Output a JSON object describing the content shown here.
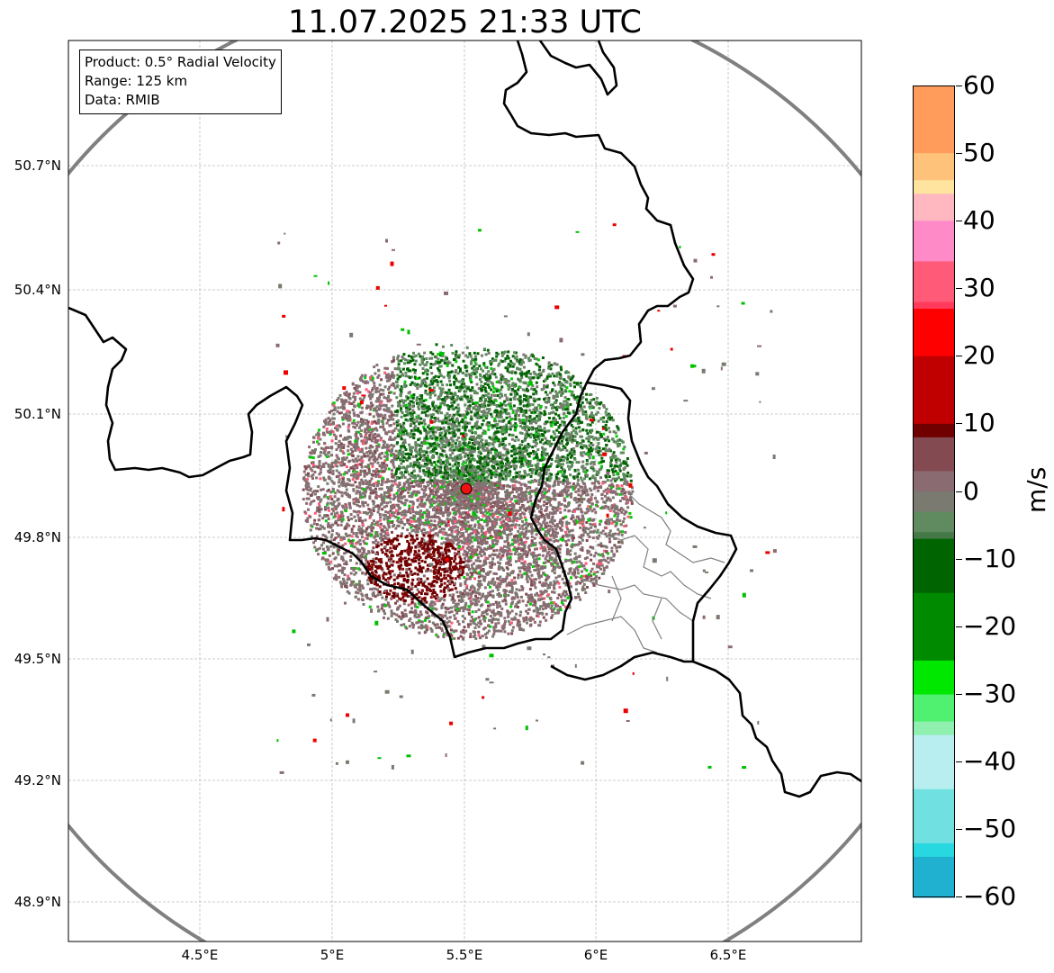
{
  "title": "11.07.2025 21:33 UTC",
  "info_box": {
    "product": "Product: 0.5° Radial Velocity",
    "range": "Range: 125 km",
    "data": "Data: RMIB"
  },
  "map": {
    "lat_ticks": [
      "50.7°N",
      "50.4°N",
      "50.1°N",
      "49.8°N",
      "49.5°N",
      "49.2°N",
      "48.9°N"
    ],
    "lon_ticks": [
      "4.5°E",
      "5°E",
      "5.5°E",
      "6°E",
      "6.5°E"
    ],
    "radar_site": {
      "lon": 5.505,
      "lat": 49.914
    },
    "range_ring_km": 125,
    "extent": {
      "lon_min": 4.0,
      "lon_max": 7.0,
      "lat_min": 48.8,
      "lat_max": 50.99
    },
    "grid": true
  },
  "colorbar": {
    "unit": "m/s",
    "min": -60,
    "max": 60,
    "tick_labels": [
      "60",
      "50",
      "40",
      "30",
      "20",
      "10",
      "0",
      "−10",
      "−20",
      "−30",
      "−40",
      "−50",
      "−60"
    ],
    "stops": [
      {
        "v": 60,
        "c": "#ff9c5c"
      },
      {
        "v": 50,
        "c": "#ffc27a"
      },
      {
        "v": 46,
        "c": "#ffe4a0"
      },
      {
        "v": 44,
        "c": "#ffb8c0"
      },
      {
        "v": 40,
        "c": "#ff8ac8"
      },
      {
        "v": 34,
        "c": "#ff5a78"
      },
      {
        "v": 28,
        "c": "#ff3a5a"
      },
      {
        "v": 27,
        "c": "#ff0000"
      },
      {
        "v": 20,
        "c": "#c00000"
      },
      {
        "v": 10,
        "c": "#700000"
      },
      {
        "v": 8,
        "c": "#844a52"
      },
      {
        "v": 3,
        "c": "#8a6b72"
      },
      {
        "v": 0,
        "c": "#7a7a70"
      },
      {
        "v": -3,
        "c": "#608a60"
      },
      {
        "v": -6,
        "c": "#457a48"
      },
      {
        "v": -7,
        "c": "#006400"
      },
      {
        "v": -15,
        "c": "#008a00"
      },
      {
        "v": -25,
        "c": "#00e800"
      },
      {
        "v": -30,
        "c": "#50f070"
      },
      {
        "v": -34,
        "c": "#90f0b0"
      },
      {
        "v": -36,
        "c": "#b8eef0"
      },
      {
        "v": -44,
        "c": "#70e0e0"
      },
      {
        "v": -52,
        "c": "#28d8e0"
      },
      {
        "v": -54,
        "c": "#20b0d0"
      },
      {
        "v": -60,
        "c": "#1e78c8"
      }
    ]
  }
}
